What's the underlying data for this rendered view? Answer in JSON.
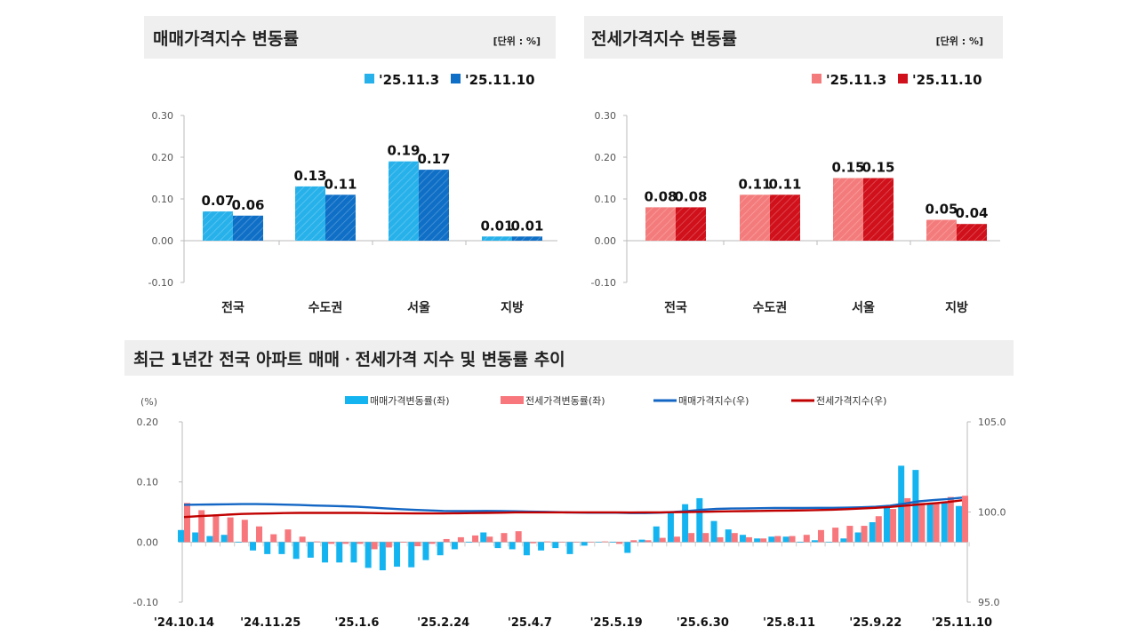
{
  "chart_data": [
    {
      "type": "bar",
      "title": "매매가격지수 변동률",
      "unit": "[단위 : %]",
      "categories": [
        "전국",
        "수도권",
        "서울",
        "지방"
      ],
      "series": [
        {
          "name": "'25.11.3",
          "values": [
            0.07,
            0.13,
            0.19,
            0.01
          ],
          "color": "#27b1ea"
        },
        {
          "name": "'25.11.10",
          "values": [
            0.06,
            0.11,
            0.17,
            0.01
          ],
          "color": "#0f6fc6"
        }
      ],
      "ylim": [
        -0.1,
        0.3
      ],
      "yticks": [
        "0.30",
        "0.20",
        "0.10",
        "0.00",
        "-0.10"
      ],
      "legend": "top-right"
    },
    {
      "type": "bar",
      "title": "전세가격지수 변동률",
      "unit": "[단위 : %]",
      "categories": [
        "전국",
        "수도권",
        "서울",
        "지방"
      ],
      "series": [
        {
          "name": "'25.11.3",
          "values": [
            0.08,
            0.11,
            0.15,
            0.05
          ],
          "color": "#f47b7b"
        },
        {
          "name": "'25.11.10",
          "values": [
            0.08,
            0.11,
            0.15,
            0.04
          ],
          "color": "#d0101a"
        }
      ],
      "ylim": [
        -0.1,
        0.3
      ],
      "yticks": [
        "0.30",
        "0.20",
        "0.10",
        "0.00",
        "-0.10"
      ],
      "legend": "top-right"
    },
    {
      "type": "bar+line",
      "title": "최근 1년간 전국 아파트 매매ㆍ전세가격 지수 및 변동률 추이",
      "ylabel_left": "(%)",
      "ylim_left": [
        -0.1,
        0.2
      ],
      "yticks_left": [
        "0.20",
        "0.10",
        "0.00",
        "-0.10"
      ],
      "ylim_right": [
        95.0,
        105.0
      ],
      "yticks_right": [
        "105.0",
        "100.0",
        "95.0"
      ],
      "xtick_labels": [
        "'24.10.14",
        "'24.11.25",
        "'25.1.6",
        "'25.2.24",
        "'25.4.7",
        "'25.5.19",
        "'25.6.30",
        "'25.8.11",
        "'25.9.22",
        "'25.11.10"
      ],
      "legend": "top",
      "series": [
        {
          "name": "매매가격변동률(좌)",
          "type": "bar",
          "axis": "left",
          "color": "#14b4f0",
          "values": [
            0.02,
            0.016,
            0.01,
            0.012,
            -0.001,
            -0.014,
            -0.02,
            -0.02,
            -0.028,
            -0.026,
            -0.034,
            -0.034,
            -0.034,
            -0.043,
            -0.047,
            -0.041,
            -0.042,
            -0.03,
            -0.022,
            -0.012,
            -0.001,
            0.016,
            -0.01,
            -0.012,
            -0.022,
            -0.014,
            -0.01,
            -0.02,
            -0.006,
            0.0,
            -0.001,
            -0.018,
            0.004,
            0.026,
            0.05,
            0.063,
            0.073,
            0.035,
            0.021,
            0.012,
            0.006,
            0.009,
            0.009,
            -0.001,
            0.003,
            0.0,
            0.006,
            0.016,
            0.033,
            0.057,
            0.127,
            0.12,
            0.065,
            0.066,
            0.06
          ]
        },
        {
          "name": "전세가격변동률(좌)",
          "type": "bar",
          "axis": "left",
          "color": "#f7777c",
          "values": [
            0.065,
            0.053,
            0.046,
            0.041,
            0.037,
            0.026,
            0.013,
            0.021,
            0.009,
            0.001,
            -0.003,
            -0.003,
            -0.003,
            -0.012,
            -0.009,
            -0.001,
            -0.007,
            -0.003,
            0.005,
            0.008,
            0.011,
            0.009,
            0.015,
            0.018,
            -0.002,
            0.001,
            0.0,
            0.0,
            0.0,
            0.001,
            -0.003,
            0.003,
            0.003,
            0.007,
            0.009,
            0.015,
            0.015,
            0.008,
            0.015,
            0.008,
            0.006,
            0.01,
            0.01,
            0.012,
            0.02,
            0.024,
            0.027,
            0.027,
            0.043,
            0.055,
            0.073,
            0.065,
            0.065,
            0.075,
            0.077
          ]
        },
        {
          "name": "매매가격지수(우)",
          "type": "line",
          "axis": "right",
          "color": "#1366c4",
          "values": [
            100.4,
            100.41,
            100.42,
            100.43,
            100.44,
            100.44,
            100.43,
            100.41,
            100.39,
            100.36,
            100.34,
            100.32,
            100.29,
            100.25,
            100.2,
            100.16,
            100.12,
            100.09,
            100.06,
            100.05,
            100.05,
            100.06,
            100.05,
            100.04,
            100.02,
            100.01,
            99.99,
            99.97,
            99.96,
            99.96,
            99.96,
            99.94,
            99.94,
            99.96,
            100.0,
            100.06,
            100.13,
            100.17,
            100.19,
            100.2,
            100.21,
            100.22,
            100.22,
            100.22,
            100.23,
            100.23,
            100.24,
            100.26,
            100.29,
            100.35,
            100.47,
            100.59,
            100.66,
            100.72,
            100.8
          ]
        },
        {
          "name": "전세가격지수(우)",
          "type": "line",
          "axis": "right",
          "color": "#c00000",
          "values": [
            99.72,
            99.77,
            99.81,
            99.85,
            99.89,
            99.91,
            99.92,
            99.94,
            99.95,
            99.95,
            99.95,
            99.95,
            99.95,
            99.94,
            99.93,
            99.93,
            99.92,
            99.92,
            99.92,
            99.93,
            99.94,
            99.95,
            99.96,
            99.98,
            99.98,
            99.98,
            99.98,
            99.98,
            99.98,
            99.98,
            99.98,
            99.97,
            99.98,
            99.98,
            99.99,
            100.0,
            100.01,
            100.03,
            100.04,
            100.05,
            100.06,
            100.07,
            100.08,
            100.09,
            100.11,
            100.13,
            100.16,
            100.19,
            100.23,
            100.28,
            100.35,
            100.42,
            100.48,
            100.55,
            100.65
          ]
        }
      ]
    }
  ]
}
